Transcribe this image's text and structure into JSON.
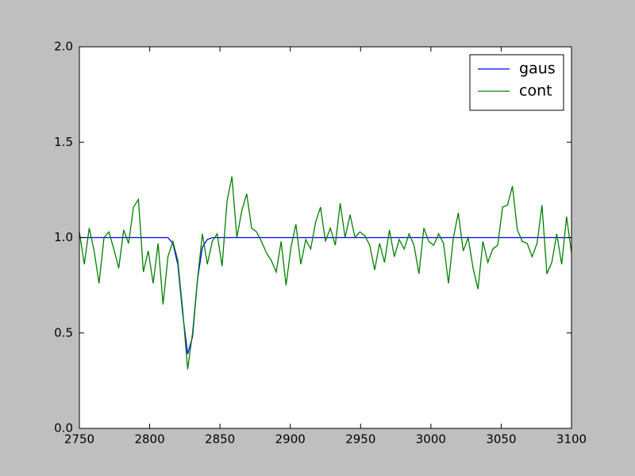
{
  "chart_data": {
    "type": "line",
    "x": [
      2750,
      2753.5,
      2757,
      2760.5,
      2764,
      2767.5,
      2771,
      2774.5,
      2778,
      2781.5,
      2785,
      2788.5,
      2792,
      2795.5,
      2799,
      2802.5,
      2806,
      2809.5,
      2813,
      2816.5,
      2820,
      2823.5,
      2827,
      2830.5,
      2834,
      2837.5,
      2841,
      2844.5,
      2848,
      2851.5,
      2855,
      2858.5,
      2862,
      2865.5,
      2869,
      2872.5,
      2876,
      2879.5,
      2883,
      2886.5,
      2890,
      2893.5,
      2897,
      2900.5,
      2904,
      2907.5,
      2911,
      2914.5,
      2918,
      2921.5,
      2925,
      2928.5,
      2932,
      2935.5,
      2939,
      2942.5,
      2946,
      2949.5,
      2953,
      2956.5,
      2960,
      2963.5,
      2967,
      2970.5,
      2974,
      2977.5,
      2981,
      2984.5,
      2988,
      2991.5,
      2995,
      2998.5,
      3002,
      3005.5,
      3009,
      3012.5,
      3016,
      3019.5,
      3023,
      3026.5,
      3030,
      3033.5,
      3037,
      3040.5,
      3044,
      3047.5,
      3051,
      3054.5,
      3058,
      3061.5,
      3065,
      3068.5,
      3072,
      3075.5,
      3079,
      3082.5,
      3086,
      3089.5,
      3093,
      3096.5,
      3100
    ],
    "series": [
      {
        "name": "gaus",
        "color": "#0000ff",
        "values": [
          1,
          1,
          1,
          1,
          1,
          1,
          1,
          1,
          1,
          1,
          1,
          1,
          1,
          1,
          1,
          1,
          1,
          1,
          1,
          0.97,
          0.86,
          0.6,
          0.39,
          0.48,
          0.78,
          0.95,
          0.99,
          1,
          1,
          1,
          1,
          1,
          1,
          1,
          1,
          1,
          1,
          1,
          1,
          1,
          1,
          1,
          1,
          1,
          1,
          1,
          1,
          1,
          1,
          1,
          1,
          1,
          1,
          1,
          1,
          1,
          1,
          1,
          1,
          1,
          1,
          1,
          1,
          1,
          1,
          1,
          1,
          1,
          1,
          1,
          1,
          1,
          1,
          1,
          1,
          1,
          1,
          1,
          1,
          1,
          1,
          1,
          1,
          1,
          1,
          1,
          1,
          1,
          1,
          1,
          1,
          1,
          1,
          1,
          1,
          1,
          1,
          1,
          1,
          1,
          1
        ]
      },
      {
        "name": "cont",
        "color": "#008000",
        "values": [
          1.03,
          0.86,
          1.05,
          0.93,
          0.76,
          1.0,
          1.03,
          0.94,
          0.84,
          1.04,
          0.97,
          1.16,
          1.2,
          0.82,
          0.93,
          0.76,
          0.97,
          0.65,
          0.9,
          0.98,
          0.88,
          0.62,
          0.31,
          0.5,
          0.78,
          1.02,
          0.86,
          0.98,
          1.02,
          0.85,
          1.19,
          1.32,
          1.0,
          1.14,
          1.23,
          1.05,
          1.03,
          0.98,
          0.92,
          0.88,
          0.82,
          0.98,
          0.75,
          0.95,
          1.07,
          0.86,
          0.99,
          0.94,
          1.08,
          1.16,
          0.98,
          1.05,
          0.96,
          1.18,
          1.0,
          1.12,
          1.0,
          1.03,
          1.01,
          0.96,
          0.83,
          0.97,
          0.87,
          1.04,
          0.9,
          0.99,
          0.94,
          1.02,
          0.96,
          0.81,
          1.05,
          0.98,
          0.96,
          1.02,
          0.97,
          0.76,
          1.0,
          1.13,
          0.93,
          1.0,
          0.84,
          0.73,
          0.98,
          0.87,
          0.94,
          0.96,
          1.16,
          1.17,
          1.27,
          1.04,
          0.98,
          0.97,
          0.9,
          0.97,
          1.17,
          0.81,
          0.87,
          1.02,
          0.86,
          1.11,
          0.92
        ]
      }
    ],
    "xlim": [
      2750,
      3100
    ],
    "xticks": [
      2750,
      2800,
      2850,
      2900,
      2950,
      3000,
      3050,
      3100
    ],
    "ylim": [
      0,
      2
    ],
    "yticks": [
      {
        "value": 0,
        "label": "0.0"
      },
      {
        "value": 0.5,
        "label": "0.5"
      },
      {
        "value": 1,
        "label": "1.0"
      },
      {
        "value": 1.5,
        "label": "1.5"
      },
      {
        "value": 2,
        "label": "2.0"
      }
    ],
    "legend": "upper right"
  }
}
